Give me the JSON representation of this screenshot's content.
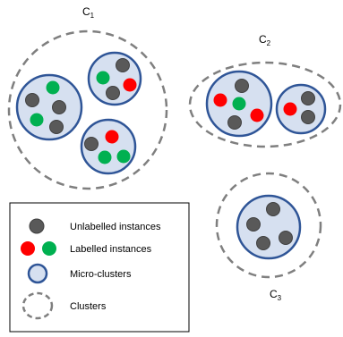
{
  "colors": {
    "unlabelled": "#595959",
    "red": "#ff0000",
    "green": "#00b050",
    "micro_fill": "#d6e0f0",
    "micro_stroke": "#2f5597",
    "cluster_stroke": "#7f7f7f",
    "instance_stroke": "#404040"
  },
  "clusters": [
    {
      "name": "C",
      "sub": "1"
    },
    {
      "name": "C",
      "sub": "2"
    },
    {
      "name": "C",
      "sub": "3"
    }
  ],
  "legend": {
    "unlabelled": "Unlabelled instances",
    "labelled": "Labelled instances",
    "micro": "Micro-clusters",
    "clusters": "Clusters"
  }
}
